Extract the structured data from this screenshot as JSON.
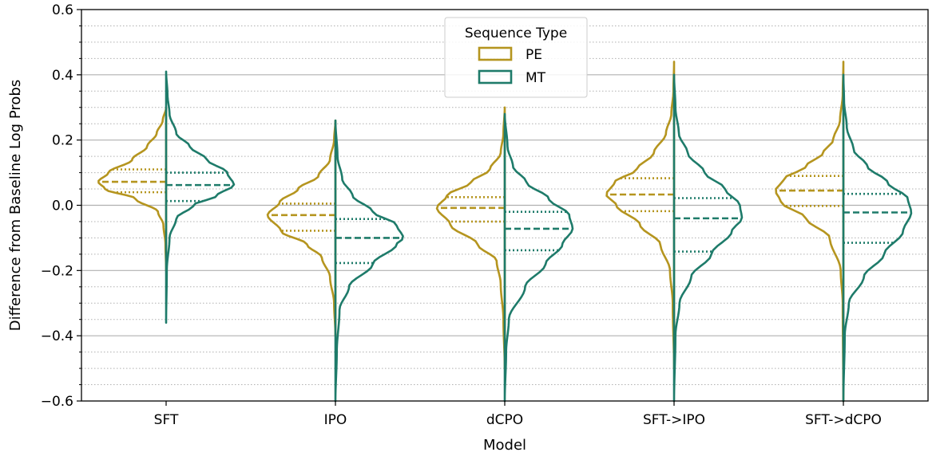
{
  "chart_data": {
    "type": "violin",
    "title": "",
    "xlabel": "Model",
    "ylabel": "Difference from Baseline Log Probs",
    "ylim": [
      -0.6,
      0.6
    ],
    "yticks": [
      -0.6,
      -0.4,
      -0.2,
      0.0,
      0.2,
      0.4,
      0.6
    ],
    "ytick_labels": [
      "−0.6",
      "−0.4",
      "−0.2",
      "0.0",
      "0.2",
      "0.4",
      "0.6"
    ],
    "minor_grid_step": 0.05,
    "grid": true,
    "split": true,
    "legend": {
      "title": "Sequence Type",
      "placement": "top-center",
      "entries": [
        "PE",
        "MT"
      ]
    },
    "colors": {
      "PE": "#b5951f",
      "MT": "#1e7b6a"
    },
    "categories": [
      "SFT",
      "IPO",
      "dCPO",
      "SFT->IPO",
      "SFT->dCPO"
    ],
    "series": [
      {
        "name": "PE",
        "side": "left",
        "groups": [
          {
            "min": -0.2,
            "max": 0.3,
            "q1": 0.04,
            "median": 0.072,
            "q3": 0.11,
            "profile": [
              [
                -0.2,
                0.0
              ],
              [
                -0.12,
                0.01
              ],
              [
                -0.06,
                0.04
              ],
              [
                -0.02,
                0.12
              ],
              [
                0.02,
                0.45
              ],
              [
                0.05,
                0.9
              ],
              [
                0.072,
                1.0
              ],
              [
                0.1,
                0.85
              ],
              [
                0.14,
                0.5
              ],
              [
                0.18,
                0.28
              ],
              [
                0.22,
                0.14
              ],
              [
                0.26,
                0.05
              ],
              [
                0.3,
                0.0
              ]
            ]
          },
          {
            "min": -0.4,
            "max": 0.26,
            "q1": -0.078,
            "median": -0.03,
            "q3": 0.005,
            "profile": [
              [
                -0.4,
                0.0
              ],
              [
                -0.3,
                0.02
              ],
              [
                -0.22,
                0.08
              ],
              [
                -0.16,
                0.2
              ],
              [
                -0.12,
                0.42
              ],
              [
                -0.08,
                0.8
              ],
              [
                -0.03,
                1.0
              ],
              [
                0.01,
                0.82
              ],
              [
                0.05,
                0.55
              ],
              [
                0.09,
                0.25
              ],
              [
                0.14,
                0.08
              ],
              [
                0.2,
                0.02
              ],
              [
                0.26,
                0.0
              ]
            ]
          },
          {
            "min": -0.5,
            "max": 0.3,
            "q1": -0.05,
            "median": -0.008,
            "q3": 0.025,
            "profile": [
              [
                -0.5,
                0.0
              ],
              [
                -0.35,
                0.02
              ],
              [
                -0.24,
                0.06
              ],
              [
                -0.17,
                0.12
              ],
              [
                -0.12,
                0.4
              ],
              [
                -0.06,
                0.8
              ],
              [
                -0.008,
                1.0
              ],
              [
                0.03,
                0.85
              ],
              [
                0.07,
                0.5
              ],
              [
                0.11,
                0.22
              ],
              [
                0.16,
                0.06
              ],
              [
                0.22,
                0.02
              ],
              [
                0.3,
                0.0
              ]
            ]
          },
          {
            "min": -0.5,
            "max": 0.44,
            "q1": -0.018,
            "median": 0.033,
            "q3": 0.083,
            "profile": [
              [
                -0.5,
                0.0
              ],
              [
                -0.3,
                0.02
              ],
              [
                -0.2,
                0.06
              ],
              [
                -0.12,
                0.2
              ],
              [
                -0.06,
                0.5
              ],
              [
                0.0,
                0.85
              ],
              [
                0.033,
                1.0
              ],
              [
                0.07,
                0.88
              ],
              [
                0.11,
                0.55
              ],
              [
                0.16,
                0.3
              ],
              [
                0.22,
                0.12
              ],
              [
                0.28,
                0.04
              ],
              [
                0.35,
                0.01
              ],
              [
                0.44,
                0.0
              ]
            ]
          },
          {
            "min": -0.6,
            "max": 0.44,
            "q1": -0.002,
            "median": 0.045,
            "q3": 0.09,
            "profile": [
              [
                -0.6,
                0.0
              ],
              [
                -0.3,
                0.01
              ],
              [
                -0.2,
                0.04
              ],
              [
                -0.1,
                0.2
              ],
              [
                -0.04,
                0.55
              ],
              [
                0.01,
                0.92
              ],
              [
                0.045,
                1.0
              ],
              [
                0.08,
                0.88
              ],
              [
                0.12,
                0.55
              ],
              [
                0.16,
                0.3
              ],
              [
                0.2,
                0.15
              ],
              [
                0.26,
                0.05
              ],
              [
                0.34,
                0.01
              ],
              [
                0.44,
                0.0
              ]
            ]
          }
        ]
      },
      {
        "name": "MT",
        "side": "right",
        "groups": [
          {
            "min": -0.36,
            "max": 0.41,
            "q1": 0.013,
            "median": 0.062,
            "q3": 0.1,
            "profile": [
              [
                -0.36,
                0.0
              ],
              [
                -0.2,
                0.01
              ],
              [
                -0.1,
                0.05
              ],
              [
                -0.04,
                0.15
              ],
              [
                0.0,
                0.4
              ],
              [
                0.03,
                0.75
              ],
              [
                0.062,
                1.0
              ],
              [
                0.1,
                0.9
              ],
              [
                0.14,
                0.6
              ],
              [
                0.18,
                0.35
              ],
              [
                0.22,
                0.15
              ],
              [
                0.28,
                0.05
              ],
              [
                0.34,
                0.02
              ],
              [
                0.41,
                0.0
              ]
            ]
          },
          {
            "min": -0.6,
            "max": 0.26,
            "q1": -0.177,
            "median": -0.1,
            "q3": -0.042,
            "profile": [
              [
                -0.6,
                0.0
              ],
              [
                -0.45,
                0.02
              ],
              [
                -0.32,
                0.06
              ],
              [
                -0.25,
                0.2
              ],
              [
                -0.18,
                0.55
              ],
              [
                -0.12,
                0.9
              ],
              [
                -0.1,
                1.0
              ],
              [
                -0.06,
                0.9
              ],
              [
                -0.02,
                0.55
              ],
              [
                0.03,
                0.25
              ],
              [
                0.08,
                0.1
              ],
              [
                0.15,
                0.03
              ],
              [
                0.26,
                0.0
              ]
            ]
          },
          {
            "min": -0.6,
            "max": 0.28,
            "q1": -0.138,
            "median": -0.072,
            "q3": -0.02,
            "profile": [
              [
                -0.6,
                0.0
              ],
              [
                -0.45,
                0.02
              ],
              [
                -0.35,
                0.06
              ],
              [
                -0.25,
                0.3
              ],
              [
                -0.18,
                0.6
              ],
              [
                -0.12,
                0.85
              ],
              [
                -0.072,
                1.0
              ],
              [
                -0.03,
                0.95
              ],
              [
                0.02,
                0.65
              ],
              [
                0.07,
                0.32
              ],
              [
                0.12,
                0.12
              ],
              [
                0.18,
                0.04
              ],
              [
                0.28,
                0.0
              ]
            ]
          },
          {
            "min": -0.6,
            "max": 0.4,
            "q1": -0.142,
            "median": -0.04,
            "q3": 0.022,
            "profile": [
              [
                -0.6,
                0.0
              ],
              [
                -0.4,
                0.02
              ],
              [
                -0.3,
                0.08
              ],
              [
                -0.22,
                0.25
              ],
              [
                -0.15,
                0.55
              ],
              [
                -0.08,
                0.85
              ],
              [
                -0.04,
                1.0
              ],
              [
                0.0,
                0.97
              ],
              [
                0.05,
                0.75
              ],
              [
                0.1,
                0.45
              ],
              [
                0.16,
                0.2
              ],
              [
                0.22,
                0.07
              ],
              [
                0.3,
                0.02
              ],
              [
                0.4,
                0.0
              ]
            ]
          },
          {
            "min": -0.6,
            "max": 0.4,
            "q1": -0.115,
            "median": -0.022,
            "q3": 0.035,
            "profile": [
              [
                -0.6,
                0.0
              ],
              [
                -0.4,
                0.02
              ],
              [
                -0.3,
                0.08
              ],
              [
                -0.22,
                0.3
              ],
              [
                -0.15,
                0.6
              ],
              [
                -0.08,
                0.88
              ],
              [
                -0.022,
                1.0
              ],
              [
                0.02,
                0.95
              ],
              [
                0.07,
                0.65
              ],
              [
                0.12,
                0.35
              ],
              [
                0.17,
                0.15
              ],
              [
                0.24,
                0.05
              ],
              [
                0.32,
                0.01
              ],
              [
                0.4,
                0.0
              ]
            ]
          }
        ]
      }
    ]
  }
}
